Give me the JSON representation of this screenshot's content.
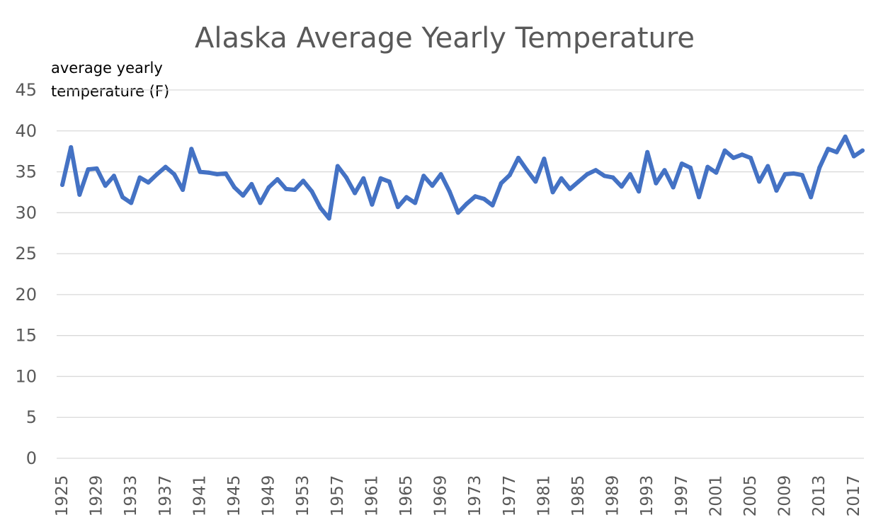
{
  "chart_data": {
    "type": "line",
    "title": "Alaska Average Yearly Temperature",
    "ylabel": [
      "average yearly",
      "temperature (F)"
    ],
    "xlabel": "",
    "ylim": [
      0,
      45
    ],
    "yticks": [
      0,
      5,
      10,
      15,
      20,
      25,
      30,
      35,
      40,
      45
    ],
    "grid": true,
    "legend": "none",
    "line_color": "#4472c4",
    "x_tick_labels": [
      "1925",
      "1929",
      "1933",
      "1937",
      "1941",
      "1945",
      "1949",
      "1953",
      "1957",
      "1961",
      "1965",
      "1969",
      "1973",
      "1977",
      "1981",
      "1985",
      "1989",
      "1993",
      "1997",
      "2001",
      "2005",
      "2009",
      "2013",
      "2017"
    ],
    "x": [
      1925,
      1926,
      1927,
      1928,
      1929,
      1930,
      1931,
      1932,
      1933,
      1934,
      1935,
      1936,
      1937,
      1938,
      1939,
      1940,
      1941,
      1942,
      1943,
      1944,
      1945,
      1946,
      1947,
      1948,
      1949,
      1950,
      1951,
      1952,
      1953,
      1954,
      1955,
      1956,
      1957,
      1958,
      1959,
      1960,
      1961,
      1962,
      1963,
      1964,
      1965,
      1966,
      1967,
      1968,
      1969,
      1970,
      1971,
      1972,
      1973,
      1974,
      1975,
      1976,
      1977,
      1978,
      1979,
      1980,
      1981,
      1982,
      1983,
      1984,
      1985,
      1986,
      1987,
      1988,
      1989,
      1990,
      1991,
      1992,
      1993,
      1994,
      1995,
      1996,
      1997,
      1998,
      1999,
      2000,
      2001,
      2002,
      2003,
      2004,
      2005,
      2006,
      2007,
      2008,
      2009,
      2010,
      2011,
      2012,
      2013,
      2014,
      2015,
      2016,
      2017,
      2018
    ],
    "series": [
      {
        "values": [
          33.4,
          38.0,
          32.2,
          35.3,
          35.4,
          33.3,
          34.5,
          31.9,
          31.2,
          34.3,
          33.7,
          34.7,
          35.6,
          34.7,
          32.8,
          37.8,
          35.0,
          34.9,
          34.7,
          34.8,
          33.1,
          32.1,
          33.5,
          31.2,
          33.1,
          34.1,
          32.9,
          32.8,
          33.9,
          32.6,
          30.6,
          29.3,
          35.7,
          34.3,
          32.4,
          34.2,
          31.0,
          34.2,
          33.8,
          30.7,
          31.9,
          31.2,
          34.5,
          33.3,
          34.7,
          32.6,
          30.0,
          31.1,
          32.0,
          31.7,
          30.9,
          33.6,
          34.6,
          36.7,
          35.2,
          33.8,
          36.6,
          32.5,
          34.2,
          32.9,
          33.8,
          34.7,
          35.2,
          34.5,
          34.3,
          33.2,
          34.7,
          32.6,
          37.4,
          33.6,
          35.2,
          33.1,
          36.0,
          35.5,
          31.9,
          35.6,
          34.9,
          37.6,
          36.7,
          37.1,
          36.7,
          33.8,
          35.7,
          32.7,
          34.7,
          34.8,
          34.6,
          31.9,
          35.5,
          37.8,
          37.4,
          39.3,
          36.9,
          37.6
        ]
      }
    ]
  }
}
